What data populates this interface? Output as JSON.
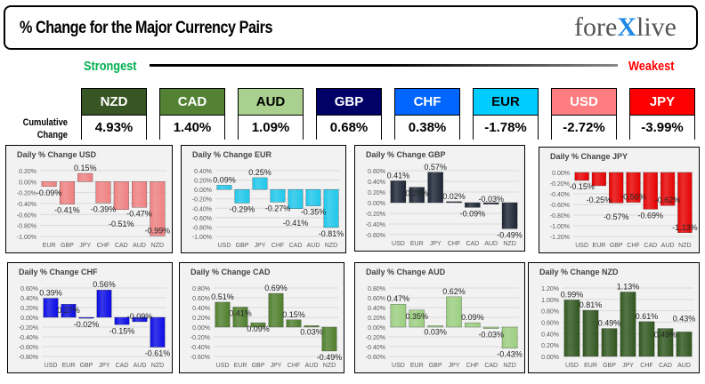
{
  "header": {
    "title": "% Change for the Major Currency Pairs",
    "logo_text": "forexlive"
  },
  "scale": {
    "strongest": "Strongest",
    "weakest": "Weakest",
    "row_label": "Cumulative Change"
  },
  "tiles": [
    {
      "ccy": "NZD",
      "value": "4.93%",
      "bg": "#375623",
      "fg": "#ffffff"
    },
    {
      "ccy": "CAD",
      "value": "1.40%",
      "bg": "#548235",
      "fg": "#ffffff"
    },
    {
      "ccy": "AUD",
      "value": "1.09%",
      "bg": "#a9d08e",
      "fg": "#000000"
    },
    {
      "ccy": "GBP",
      "value": "0.68%",
      "bg": "#000066",
      "fg": "#ffffff"
    },
    {
      "ccy": "CHF",
      "value": "0.38%",
      "bg": "#0066ff",
      "fg": "#ffffff"
    },
    {
      "ccy": "EUR",
      "value": "-1.78%",
      "bg": "#00ccff",
      "fg": "#000000"
    },
    {
      "ccy": "USD",
      "value": "-2.72%",
      "bg": "#ff7c80",
      "fg": "#ffffff"
    },
    {
      "ccy": "JPY",
      "value": "-3.99%",
      "bg": "#ff0000",
      "fg": "#ffffff"
    }
  ],
  "chart_data": [
    {
      "type": "bar",
      "title": "Daily % Change USD",
      "categories": [
        "EUR",
        "GBP",
        "JPY",
        "CHF",
        "CAD",
        "AUD",
        "NZD"
      ],
      "values": [
        -0.09,
        -0.41,
        0.15,
        -0.39,
        -0.51,
        -0.47,
        -0.99
      ],
      "ylim": [
        -1.0,
        0.2
      ],
      "yticks": [
        0.2,
        0,
        -0.2,
        -0.4,
        -0.6,
        -0.8,
        -1.0
      ],
      "color": "#f08080",
      "grid": true
    },
    {
      "type": "bar",
      "title": "Daily % Change EUR",
      "categories": [
        "USD",
        "GBP",
        "JPY",
        "CHF",
        "CAD",
        "AUD",
        "NZD"
      ],
      "values": [
        0.09,
        -0.29,
        0.25,
        -0.27,
        -0.41,
        -0.35,
        -0.81
      ],
      "ylim": [
        -1.0,
        0.4
      ],
      "yticks": [
        0.4,
        0.2,
        0,
        -0.2,
        -0.4,
        -0.6,
        -0.8,
        -1.0
      ],
      "color": "#1ec8ec",
      "grid": true
    },
    {
      "type": "bar",
      "title": "Daily % Change GBP",
      "categories": [
        "USD",
        "EUR",
        "JPY",
        "CHF",
        "CAD",
        "AUD",
        "NZD"
      ],
      "values": [
        0.41,
        0.29,
        0.57,
        0.02,
        -0.09,
        -0.03,
        -0.49
      ],
      "ylim": [
        -0.6,
        0.6
      ],
      "yticks": [
        0.6,
        0.4,
        0.2,
        0,
        -0.2,
        -0.4,
        -0.6
      ],
      "color": "#1c2433",
      "grid": true
    },
    {
      "type": "bar",
      "title": "Daily % Change JPY",
      "categories": [
        "USD",
        "EUR",
        "GBP",
        "CHF",
        "CAD",
        "AUD",
        "NZD"
      ],
      "values": [
        -0.15,
        -0.25,
        -0.57,
        -0.56,
        -0.69,
        -0.62,
        -1.13
      ],
      "ylim": [
        -1.2,
        0
      ],
      "yticks": [
        0,
        -0.2,
        -0.4,
        -0.6,
        -0.8,
        -1.0,
        -1.2
      ],
      "color": "#e80000",
      "grid": true
    },
    {
      "type": "bar",
      "title": "Daily % Change CHF",
      "categories": [
        "USD",
        "EUR",
        "GBP",
        "JPY",
        "CAD",
        "AUD",
        "NZD"
      ],
      "values": [
        0.39,
        0.27,
        -0.02,
        0.56,
        -0.15,
        -0.09,
        -0.61
      ],
      "ylim": [
        -0.8,
        0.6
      ],
      "yticks": [
        0.6,
        0.4,
        0.2,
        0,
        -0.2,
        -0.4,
        -0.6,
        -0.8
      ],
      "color": "#0a0ae6",
      "grid": true
    },
    {
      "type": "bar",
      "title": "Daily % Change CAD",
      "categories": [
        "USD",
        "EUR",
        "GBP",
        "JPY",
        "CHF",
        "AUD",
        "NZD"
      ],
      "values": [
        0.51,
        0.41,
        0.09,
        0.69,
        0.15,
        0.03,
        -0.49
      ],
      "ylim": [
        -0.6,
        0.8
      ],
      "yticks": [
        0.8,
        0.6,
        0.4,
        0.2,
        0,
        -0.2,
        -0.4,
        -0.6
      ],
      "color": "#4e7f2c",
      "grid": true
    },
    {
      "type": "bar",
      "title": "Daily % Change AUD",
      "categories": [
        "USD",
        "EUR",
        "GBP",
        "JPY",
        "CHF",
        "CAD",
        "NZD"
      ],
      "values": [
        0.47,
        0.35,
        0.03,
        0.62,
        0.09,
        -0.03,
        -0.43
      ],
      "ylim": [
        -0.6,
        0.8
      ],
      "yticks": [
        0.8,
        0.6,
        0.4,
        0.2,
        0,
        -0.2,
        -0.4,
        -0.6
      ],
      "color": "#9ccf80",
      "grid": true
    },
    {
      "type": "bar",
      "title": "Daily % Change NZD",
      "categories": [
        "USD",
        "EUR",
        "GBP",
        "JPY",
        "CHF",
        "CAD",
        "AUD"
      ],
      "values": [
        0.99,
        0.81,
        0.49,
        1.13,
        0.61,
        0.49,
        0.43
      ],
      "ylim": [
        0,
        1.2
      ],
      "yticks": [
        1.2,
        1.0,
        0.8,
        0.6,
        0.4,
        0.2,
        0
      ],
      "color": "#30561e",
      "grid": true
    }
  ]
}
